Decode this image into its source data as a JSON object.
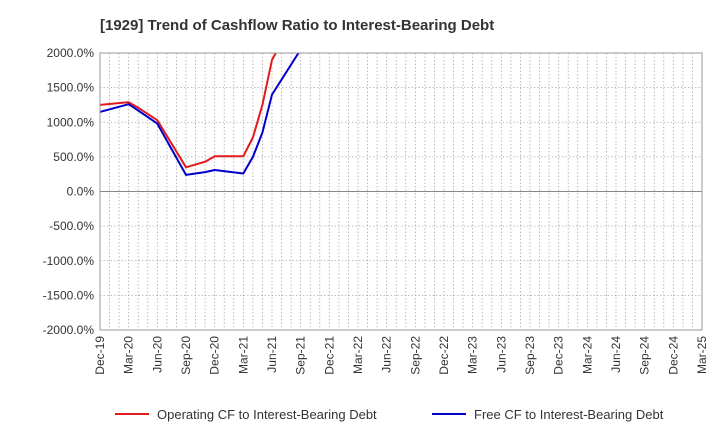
{
  "chart_data": {
    "type": "line",
    "title": "[1929]  Trend of Cashflow Ratio to Interest-Bearing Debt",
    "xlabel": "",
    "ylabel": "",
    "ylim": [
      -2000,
      2000
    ],
    "y_ticks": [
      2000,
      1500,
      1000,
      500,
      0,
      -500,
      -1000,
      -1500,
      -2000
    ],
    "y_tick_labels": [
      "2000.0%",
      "1500.0%",
      "1000.0%",
      "500.0%",
      "0.0%",
      "-500.0%",
      "-1000.0%",
      "-1500.0%",
      "-2000.0%"
    ],
    "x_tick_labels": [
      "Dec-19",
      "Mar-20",
      "Jun-20",
      "Sep-20",
      "Dec-20",
      "Mar-21",
      "Jun-21",
      "Sep-21",
      "Dec-21",
      "Mar-22",
      "Jun-22",
      "Sep-22",
      "Dec-22",
      "Mar-23",
      "Jun-23",
      "Sep-23",
      "Dec-23",
      "Mar-24",
      "Jun-24",
      "Sep-24",
      "Dec-24",
      "Mar-25"
    ],
    "grid": true,
    "legend_position": "bottom",
    "series": [
      {
        "name": "Operating CF to Interest-Bearing Debt",
        "color": "#e31a1c",
        "points": [
          {
            "x": "Dec-19",
            "y": 1250
          },
          {
            "x": "Mar-20",
            "y": 1290
          },
          {
            "x": "Apr-20",
            "y": 1210
          },
          {
            "x": "Jun-20",
            "y": 1030
          },
          {
            "x": "Sep-20",
            "y": 350
          },
          {
            "x": "Nov-20",
            "y": 430
          },
          {
            "x": "Dec-20",
            "y": 510
          },
          {
            "x": "Mar-21",
            "y": 510
          },
          {
            "x": "Apr-21",
            "y": 780
          },
          {
            "x": "May-21",
            "y": 1250
          },
          {
            "x": "Jun-21",
            "y": 1900
          },
          {
            "x": "Jul-21",
            "y": 2150
          }
        ]
      },
      {
        "name": "Free CF to Interest-Bearing Debt",
        "color": "#0000cc",
        "points": [
          {
            "x": "Dec-19",
            "y": 1150
          },
          {
            "x": "Mar-20",
            "y": 1260
          },
          {
            "x": "Apr-20",
            "y": 1170
          },
          {
            "x": "Jun-20",
            "y": 980
          },
          {
            "x": "Sep-20",
            "y": 240
          },
          {
            "x": "Nov-20",
            "y": 280
          },
          {
            "x": "Dec-20",
            "y": 310
          },
          {
            "x": "Mar-21",
            "y": 260
          },
          {
            "x": "Apr-21",
            "y": 500
          },
          {
            "x": "May-21",
            "y": 850
          },
          {
            "x": "Jun-21",
            "y": 1400
          },
          {
            "x": "Sep-21",
            "y": 2050
          }
        ]
      }
    ]
  }
}
